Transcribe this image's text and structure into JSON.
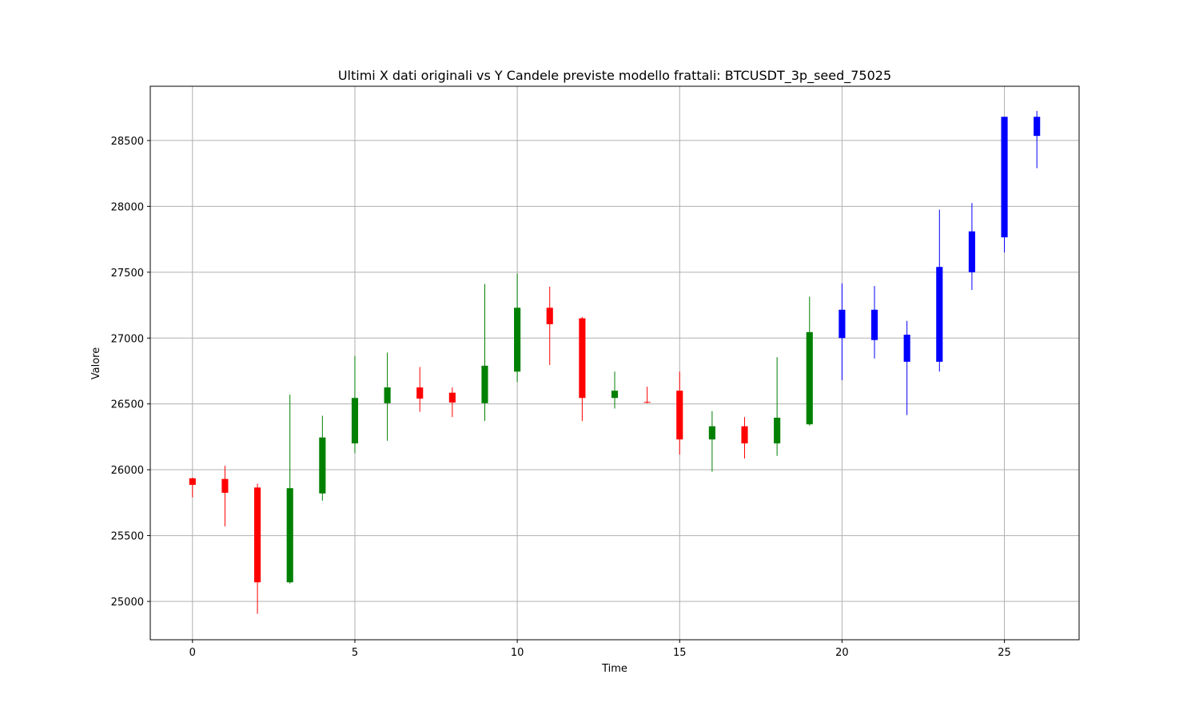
{
  "chart_data": {
    "type": "candlestick",
    "title": "Ultimi X dati originali vs Y Candele previste modello frattali: BTCUSDT_3p_seed_75025",
    "x_label": "Time",
    "y_label": "Valore",
    "x": [
      0,
      1,
      2,
      3,
      4,
      5,
      6,
      7,
      8,
      9,
      10,
      11,
      12,
      13,
      14,
      15,
      16,
      17,
      18,
      19,
      20,
      21,
      22,
      23,
      24,
      25,
      26
    ],
    "open": [
      25935,
      25930,
      25865,
      25145,
      25820,
      26200,
      26505,
      26625,
      26585,
      26505,
      26745,
      27230,
      27150,
      26545,
      26515,
      26600,
      26230,
      26330,
      26200,
      26345,
      27000,
      27215,
      27025,
      26820,
      27500,
      27765,
      28535
    ],
    "high": [
      25940,
      26030,
      25895,
      26570,
      26410,
      26865,
      26890,
      26780,
      26625,
      27410,
      27490,
      27390,
      27160,
      26745,
      26630,
      26745,
      26445,
      26400,
      26855,
      27315,
      27415,
      27395,
      27130,
      27975,
      28025,
      28680,
      28725
    ],
    "low": [
      25790,
      25570,
      24905,
      25135,
      25765,
      26125,
      26220,
      26440,
      26400,
      26370,
      26665,
      26795,
      26370,
      26465,
      26505,
      26115,
      25985,
      26085,
      26105,
      26335,
      26680,
      26845,
      26415,
      26745,
      27365,
      27650,
      28290
    ],
    "close": [
      25885,
      25825,
      25145,
      25860,
      26245,
      26545,
      26625,
      26540,
      26510,
      26790,
      27230,
      27105,
      26545,
      26600,
      26510,
      26230,
      26330,
      26200,
      26395,
      27045,
      27215,
      26985,
      26820,
      27540,
      27810,
      28680,
      28680
    ],
    "colors": [
      "red",
      "red",
      "red",
      "green",
      "green",
      "green",
      "green",
      "red",
      "red",
      "green",
      "green",
      "red",
      "red",
      "green",
      "red",
      "red",
      "green",
      "red",
      "green",
      "green",
      "blue",
      "blue",
      "blue",
      "blue",
      "blue",
      "blue",
      "blue"
    ],
    "xlim": [
      -1.3,
      27.3
    ],
    "ylim": [
      24709,
      28912
    ],
    "xticks": [
      0,
      5,
      10,
      15,
      20,
      25
    ],
    "yticks": [
      25000,
      25500,
      26000,
      26500,
      27000,
      27500,
      28000,
      28500
    ],
    "grid": true
  }
}
